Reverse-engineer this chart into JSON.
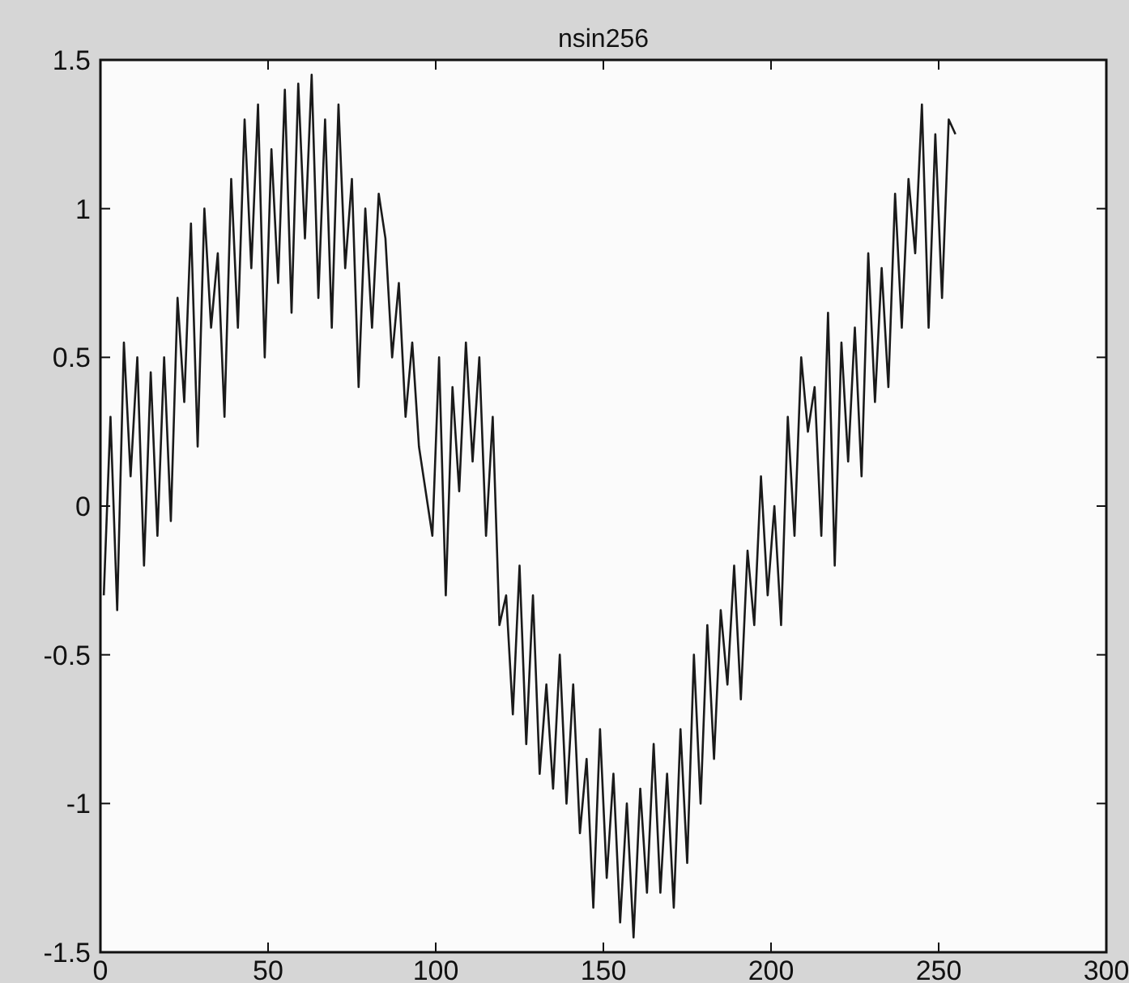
{
  "chart_data": {
    "type": "line",
    "title": "nsin256",
    "x": [
      1,
      3,
      5,
      7,
      9,
      11,
      13,
      15,
      17,
      19,
      21,
      23,
      25,
      27,
      29,
      31,
      33,
      35,
      37,
      39,
      41,
      43,
      45,
      47,
      49,
      51,
      53,
      55,
      57,
      59,
      61,
      63,
      65,
      67,
      69,
      71,
      73,
      75,
      77,
      79,
      81,
      83,
      85,
      87,
      89,
      91,
      93,
      95,
      97,
      99,
      101,
      103,
      105,
      107,
      109,
      111,
      113,
      115,
      117,
      119,
      121,
      123,
      125,
      127,
      129,
      131,
      133,
      135,
      137,
      139,
      141,
      143,
      145,
      147,
      149,
      151,
      153,
      155,
      157,
      159,
      161,
      163,
      165,
      167,
      169,
      171,
      173,
      175,
      177,
      179,
      181,
      183,
      185,
      187,
      189,
      191,
      193,
      195,
      197,
      199,
      201,
      203,
      205,
      207,
      209,
      211,
      213,
      215,
      217,
      219,
      221,
      223,
      225,
      227,
      229,
      231,
      233,
      235,
      237,
      239,
      241,
      243,
      245,
      247,
      249,
      251,
      253,
      255
    ],
    "series": [
      {
        "color": "#1a1a1a",
        "values": [
          -0.3,
          0.3,
          -0.35,
          0.55,
          0.1,
          0.5,
          -0.2,
          0.45,
          -0.1,
          0.5,
          -0.05,
          0.7,
          0.35,
          0.95,
          0.2,
          1.0,
          0.6,
          0.85,
          0.3,
          1.1,
          0.6,
          1.3,
          0.8,
          1.35,
          0.5,
          1.2,
          0.75,
          1.4,
          0.65,
          1.42,
          0.9,
          1.45,
          0.7,
          1.3,
          0.6,
          1.35,
          0.8,
          1.1,
          0.4,
          1.0,
          0.6,
          1.05,
          0.9,
          0.5,
          0.75,
          0.3,
          0.55,
          0.2,
          0.05,
          -0.1,
          0.5,
          -0.3,
          0.4,
          0.05,
          0.55,
          0.15,
          0.5,
          -0.1,
          0.3,
          -0.4,
          -0.3,
          -0.7,
          -0.2,
          -0.8,
          -0.3,
          -0.9,
          -0.6,
          -0.95,
          -0.5,
          -1.0,
          -0.6,
          -1.1,
          -0.85,
          -1.35,
          -0.75,
          -1.25,
          -0.9,
          -1.4,
          -1.0,
          -1.45,
          -0.95,
          -1.3,
          -0.8,
          -1.3,
          -0.9,
          -1.35,
          -0.75,
          -1.2,
          -0.5,
          -1.0,
          -0.4,
          -0.85,
          -0.35,
          -0.6,
          -0.2,
          -0.65,
          -0.15,
          -0.4,
          0.1,
          -0.3,
          0.0,
          -0.4,
          0.3,
          -0.1,
          0.5,
          0.25,
          0.4,
          -0.1,
          0.65,
          -0.2,
          0.55,
          0.15,
          0.6,
          0.1,
          0.85,
          0.35,
          0.8,
          0.4,
          1.05,
          0.6,
          1.1,
          0.85,
          1.35,
          0.6,
          1.25,
          0.7,
          1.3,
          1.25
        ]
      }
    ],
    "xlim": [
      0,
      300
    ],
    "xticks": [
      0,
      50,
      100,
      150,
      200,
      250,
      300
    ],
    "ylim": [
      -1.5,
      1.5
    ],
    "yticks": [
      -1.5,
      -1,
      -0.5,
      0,
      0.5,
      1,
      1.5
    ],
    "grid": false,
    "marker": "none",
    "line_style": "solid"
  }
}
